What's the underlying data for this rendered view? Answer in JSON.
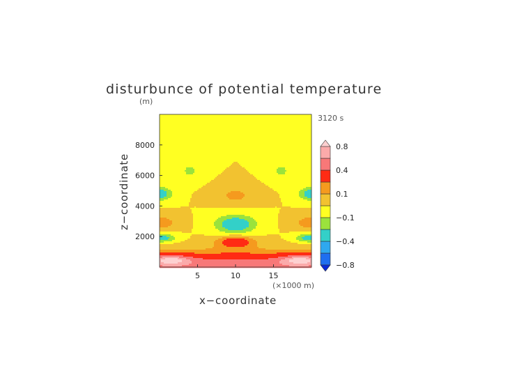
{
  "chart_data": {
    "type": "heatmap",
    "title": "disturbunce of potential temperature",
    "ylabel_unit": "(m)",
    "time_label": "3120 s",
    "xlabel": "x−coordinate",
    "ylabel": "z−coordinate",
    "x_unit_label": "(×1000 m)",
    "xlim": [
      0,
      20
    ],
    "ylim": [
      0,
      10000
    ],
    "x_ticks": [
      5,
      10,
      15
    ],
    "x_tick_labels": [
      "5",
      "10",
      "15"
    ],
    "y_ticks": [
      2000,
      4000,
      6000,
      8000
    ],
    "y_tick_labels": [
      "2000",
      "4000",
      "6000",
      "8000"
    ],
    "colorbar": {
      "levels": [
        -0.8,
        -0.6,
        -0.4,
        -0.2,
        -0.1,
        0,
        0.1,
        0.2,
        0.4,
        0.6,
        0.8,
        1.0
      ],
      "colors": [
        "#0a2ad8",
        "#1f6ef0",
        "#2fa8ef",
        "#33d0c8",
        "#9be23c",
        "#ffff22",
        "#f2c230",
        "#f59a1e",
        "#ff2b14",
        "#f87878",
        "#fbaaaa",
        "#fdd0d0"
      ],
      "labels": [
        {
          "value": 0.8,
          "text": "0.8"
        },
        {
          "value": 0.4,
          "text": "0.4"
        },
        {
          "value": 0.1,
          "text": "0.1"
        },
        {
          "value": -0.1,
          "text": "−0.1"
        },
        {
          "value": -0.4,
          "text": "−0.4"
        },
        {
          "value": -0.8,
          "text": "−0.8"
        }
      ],
      "extend": "both"
    },
    "field_features": [
      {
        "x": 10,
        "z": 9300,
        "sx": 30,
        "sz": 550,
        "value": -0.1
      },
      {
        "x": 4,
        "z": 6300,
        "sx": 1.5,
        "sz": 600,
        "value": -0.12
      },
      {
        "x": 16,
        "z": 6300,
        "sx": 1.5,
        "sz": 600,
        "value": -0.12
      },
      {
        "x": 0,
        "z": 4800,
        "sx": 1.6,
        "sz": 420,
        "value": -0.3
      },
      {
        "x": 20,
        "z": 4800,
        "sx": 1.6,
        "sz": 420,
        "value": -0.3
      },
      {
        "x": 10,
        "z": 4700,
        "sx": 2.4,
        "sz": 550,
        "value": 0.13
      },
      {
        "x": 10,
        "z": 2800,
        "sx": 2.6,
        "sz": 600,
        "value": -0.32
      },
      {
        "x": 0,
        "z": 2900,
        "sx": 2.2,
        "sz": 450,
        "value": 0.18
      },
      {
        "x": 20,
        "z": 2900,
        "sx": 2.2,
        "sz": 450,
        "value": 0.18
      },
      {
        "x": 0,
        "z": 1900,
        "sx": 2.0,
        "sz": 280,
        "value": -0.3
      },
      {
        "x": 20,
        "z": 1900,
        "sx": 2.0,
        "sz": 280,
        "value": -0.3
      },
      {
        "x": 10,
        "z": 1650,
        "sx": 2.4,
        "sz": 380,
        "value": 0.33
      },
      {
        "x": 10,
        "z": 0,
        "sx": 40,
        "sz": 900,
        "value": 0.55
      },
      {
        "x": 1.5,
        "z": 450,
        "sx": 2.4,
        "sz": 280,
        "value": 0.55
      },
      {
        "x": 18.5,
        "z": 450,
        "sx": 2.4,
        "sz": 280,
        "value": 0.55
      }
    ]
  }
}
